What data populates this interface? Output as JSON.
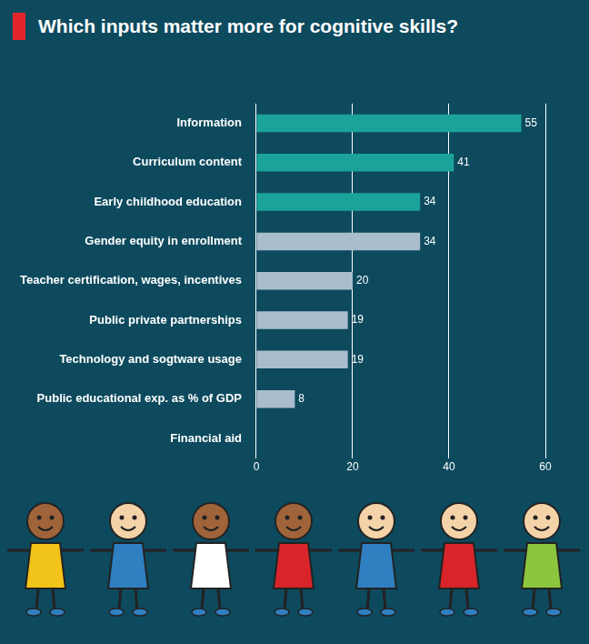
{
  "chart_data": {
    "type": "bar",
    "orientation": "horizontal",
    "title": "Which inputs matter more for cognitive skills?",
    "categories": [
      "Information",
      "Curriculum content",
      "Early childhood education",
      "Gender equity in enrollment",
      "Teacher certification, wages, incentives",
      "Public private partnerships",
      "Technology and sogtware usage",
      "Public educational exp. as % of GDP",
      "Financial aid"
    ],
    "values": [
      55,
      41,
      34,
      34,
      20,
      19,
      19,
      8,
      null
    ],
    "colors": [
      "#1ba39b",
      "#1ba39b",
      "#1ba39b",
      "#a9bdcc",
      "#a9bdcc",
      "#a9bdcc",
      "#a9bdcc",
      "#a9bdcc",
      "#a9bdcc"
    ],
    "xlim": [
      0,
      60
    ],
    "xticks": [
      0,
      20,
      40,
      60
    ],
    "grid": true,
    "data_labels": true
  }
}
